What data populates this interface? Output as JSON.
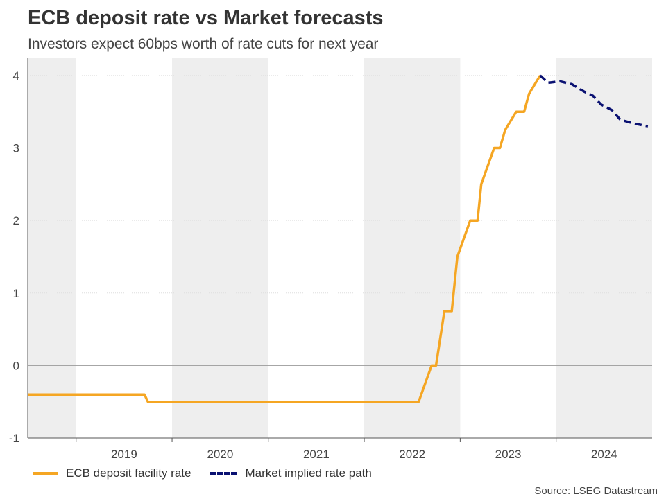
{
  "header": {
    "title": "ECB deposit rate vs Market forecasts",
    "subtitle": "Investors expect 60bps worth of rate cuts for next year"
  },
  "footer": {
    "source": "Source: LSEG Datastream"
  },
  "colors": {
    "ecb_line": "#f5a623",
    "market_line": "#0a1172",
    "band_shade": "#eeeeee",
    "grid": "#dddddd",
    "zero_line": "#999999"
  },
  "chart_data": {
    "type": "line",
    "title": "ECB deposit rate vs Market forecasts",
    "subtitle": "Investors expect 60bps worth of rate cuts for next year",
    "xlim": [
      "2018-07-01",
      "2024-12-31"
    ],
    "ylim": [
      -1,
      4.2
    ],
    "y_ticks": [
      -1,
      0,
      1,
      2,
      3,
      4
    ],
    "x_tick_labels": [
      "2019",
      "2020",
      "2021",
      "2022",
      "2023",
      "2024"
    ],
    "grid": true,
    "legend_position": "bottom-left",
    "series": [
      {
        "name": "ECB deposit facility rate",
        "style": "solid",
        "points": [
          {
            "x": "2018-07-01",
            "y": -0.4
          },
          {
            "x": "2019-09-18",
            "y": -0.4
          },
          {
            "x": "2019-10-01",
            "y": -0.5
          },
          {
            "x": "2022-07-27",
            "y": -0.5
          },
          {
            "x": "2022-09-14",
            "y": 0
          },
          {
            "x": "2022-10-01",
            "y": 0
          },
          {
            "x": "2022-11-02",
            "y": 0.75
          },
          {
            "x": "2022-11-30",
            "y": 0.75
          },
          {
            "x": "2022-12-21",
            "y": 1.5
          },
          {
            "x": "2023-02-08",
            "y": 2
          },
          {
            "x": "2023-03-08",
            "y": 2
          },
          {
            "x": "2023-03-22",
            "y": 2.5
          },
          {
            "x": "2023-05-10",
            "y": 3
          },
          {
            "x": "2023-06-01",
            "y": 3
          },
          {
            "x": "2023-06-21",
            "y": 3.25
          },
          {
            "x": "2023-08-02",
            "y": 3.5
          },
          {
            "x": "2023-09-01",
            "y": 3.5
          },
          {
            "x": "2023-09-20",
            "y": 3.75
          },
          {
            "x": "2023-11-01",
            "y": 4
          }
        ]
      },
      {
        "name": "Market implied rate path",
        "style": "dashed",
        "points": [
          {
            "x": "2023-11-01",
            "y": 4
          },
          {
            "x": "2023-12-01",
            "y": 3.9
          },
          {
            "x": "2024-01-15",
            "y": 3.92
          },
          {
            "x": "2024-03-01",
            "y": 3.88
          },
          {
            "x": "2024-04-15",
            "y": 3.78
          },
          {
            "x": "2024-05-20",
            "y": 3.72
          },
          {
            "x": "2024-06-20",
            "y": 3.6
          },
          {
            "x": "2024-08-01",
            "y": 3.52
          },
          {
            "x": "2024-09-01",
            "y": 3.39
          },
          {
            "x": "2024-10-20",
            "y": 3.34
          },
          {
            "x": "2024-12-15",
            "y": 3.3
          }
        ]
      }
    ]
  },
  "legend": {
    "items": [
      {
        "label": "ECB deposit facility rate"
      },
      {
        "label": "Market implied rate path"
      }
    ]
  }
}
